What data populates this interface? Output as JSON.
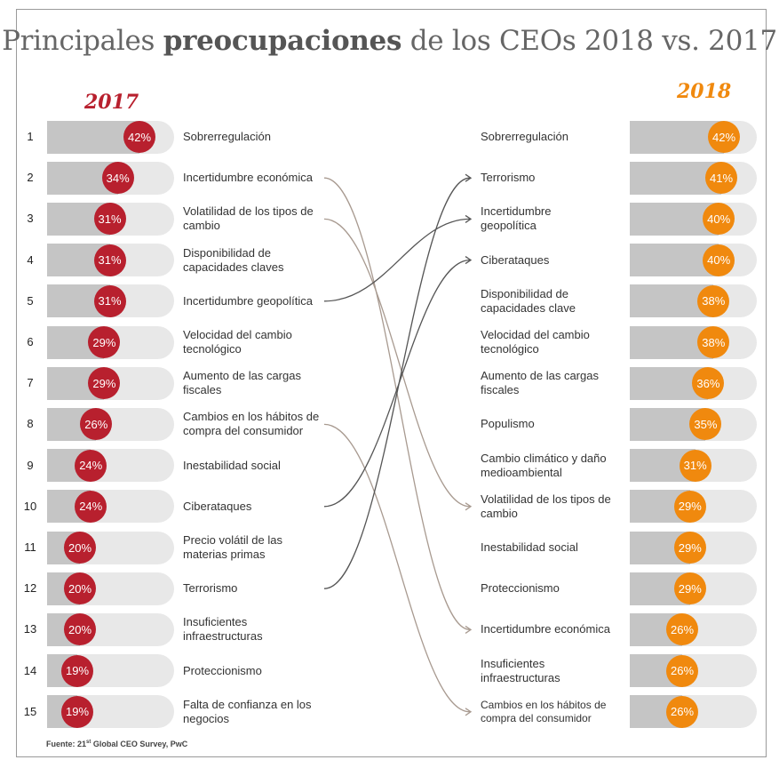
{
  "title": {
    "part1": "Principales ",
    "bold": "preocupaciones",
    "part2": " de los CEOs 2018 vs. 2017"
  },
  "years": {
    "left": "2017",
    "right": "2018"
  },
  "source": {
    "prefix": "Fuente: 21",
    "sup": "st",
    "suffix": " Global CEO Survey, PwC"
  },
  "colors": {
    "left": "#b8202e",
    "right": "#f0890e"
  },
  "chart_data": {
    "type": "ranked-comparison",
    "title": "Principales preocupaciones de los CEOs 2018 vs. 2017",
    "series": [
      {
        "name": "2017",
        "items": [
          {
            "rank": "1",
            "label": [
              "Sobrerregulación"
            ],
            "value": 42,
            "value_label": "42%"
          },
          {
            "rank": "2",
            "label": [
              "Incertidumbre económica"
            ],
            "value": 34,
            "value_label": "34%"
          },
          {
            "rank": "3",
            "label": [
              "Volatilidad de los tipos de",
              "cambio"
            ],
            "value": 31,
            "value_label": "31%"
          },
          {
            "rank": "4",
            "label": [
              "Disponibilidad de",
              "capacidades claves"
            ],
            "value": 31,
            "value_label": "31%"
          },
          {
            "rank": "5",
            "label": [
              "Incertidumbre geopolítica"
            ],
            "value": 31,
            "value_label": "31%"
          },
          {
            "rank": "6",
            "label": [
              "Velocidad del cambio",
              "tecnológico"
            ],
            "value": 29,
            "value_label": "29%"
          },
          {
            "rank": "7",
            "label": [
              "Aumento de las cargas",
              "fiscales"
            ],
            "value": 29,
            "value_label": "29%"
          },
          {
            "rank": "8",
            "label": [
              "Cambios en los hábitos de",
              "compra del consumidor"
            ],
            "value": 26,
            "value_label": "26%"
          },
          {
            "rank": "9",
            "label": [
              "Inestabilidad social"
            ],
            "value": 24,
            "value_label": "24%"
          },
          {
            "rank": "10",
            "label": [
              "Ciberataques"
            ],
            "value": 24,
            "value_label": "24%"
          },
          {
            "rank": "11",
            "label": [
              "Precio volátil de las",
              "materias primas"
            ],
            "value": 20,
            "value_label": "20%"
          },
          {
            "rank": "12",
            "label": [
              "Terrorismo"
            ],
            "value": 20,
            "value_label": "20%"
          },
          {
            "rank": "13",
            "label": [
              "Insuficientes",
              "infraestructuras"
            ],
            "value": 20,
            "value_label": "20%"
          },
          {
            "rank": "14",
            "label": [
              "Proteccionismo"
            ],
            "value": 19,
            "value_label": "19%"
          },
          {
            "rank": "15",
            "label": [
              "Falta de confianza en los",
              "negocios"
            ],
            "value": 19,
            "value_label": "19%"
          }
        ]
      },
      {
        "name": "2018",
        "items": [
          {
            "label": [
              "Sobrerregulación"
            ],
            "value": 42,
            "value_label": "42%"
          },
          {
            "label": [
              "Terrorismo"
            ],
            "value": 41,
            "value_label": "41%"
          },
          {
            "label": [
              "Incertidumbre",
              "geopolítica"
            ],
            "value": 40,
            "value_label": "40%"
          },
          {
            "label": [
              "Ciberataques"
            ],
            "value": 40,
            "value_label": "40%"
          },
          {
            "label": [
              "Disponibilidad de",
              "capacidades clave"
            ],
            "value": 38,
            "value_label": "38%"
          },
          {
            "label": [
              "Velocidad del cambio",
              "tecnológico"
            ],
            "value": 38,
            "value_label": "38%"
          },
          {
            "label": [
              "Aumento de las cargas",
              "fiscales"
            ],
            "value": 36,
            "value_label": "36%"
          },
          {
            "label": [
              "Populismo"
            ],
            "value": 35,
            "value_label": "35%"
          },
          {
            "label": [
              "Cambio climático y daño",
              "medioambiental"
            ],
            "value": 31,
            "value_label": "31%"
          },
          {
            "label": [
              "Volatilidad de los tipos de",
              "cambio"
            ],
            "value": 29,
            "value_label": "29%"
          },
          {
            "label": [
              "Inestabilidad social"
            ],
            "value": 29,
            "value_label": "29%"
          },
          {
            "label": [
              "Proteccionismo"
            ],
            "value": 29,
            "value_label": "29%"
          },
          {
            "label": [
              "Incertidumbre económica"
            ],
            "value": 26,
            "value_label": "26%"
          },
          {
            "label": [
              "Insuficientes",
              "infraestructuras"
            ],
            "value": 26,
            "value_label": "26%"
          },
          {
            "label": [
              "Cambios en los hábitos de",
              "compra del consumidor"
            ],
            "value": 26,
            "value_label": "26%",
            "small": true
          }
        ]
      }
    ],
    "connectors": [
      {
        "from_rank": 2,
        "to_rank": 13,
        "color": "#a89a90"
      },
      {
        "from_rank": 3,
        "to_rank": 10,
        "color": "#a89a90"
      },
      {
        "from_rank": 5,
        "to_rank": 3,
        "color": "#555555"
      },
      {
        "from_rank": 8,
        "to_rank": 15,
        "color": "#a89a90"
      },
      {
        "from_rank": 10,
        "to_rank": 4,
        "color": "#555555"
      },
      {
        "from_rank": 12,
        "to_rank": 2,
        "color": "#555555"
      }
    ]
  }
}
